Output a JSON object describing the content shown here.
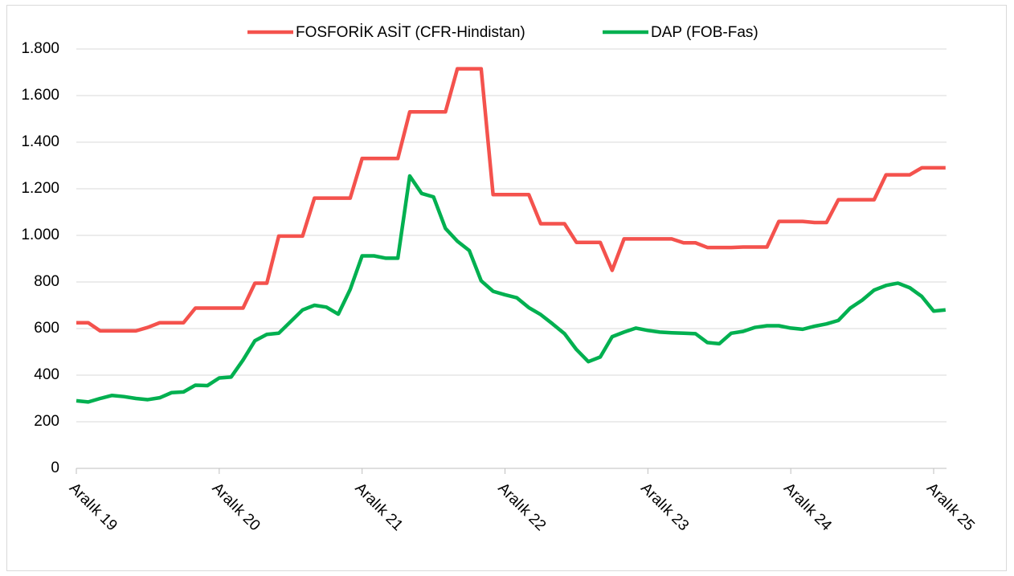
{
  "chart_data": {
    "type": "line",
    "categories": [
      "Aralık 19",
      null,
      null,
      null,
      null,
      null,
      null,
      null,
      null,
      null,
      null,
      null,
      "Aralık 20",
      null,
      null,
      null,
      null,
      null,
      null,
      null,
      null,
      null,
      null,
      null,
      "Aralık 21",
      null,
      null,
      null,
      null,
      null,
      null,
      null,
      null,
      null,
      null,
      null,
      "Aralık 22",
      null,
      null,
      null,
      null,
      null,
      null,
      null,
      null,
      null,
      null,
      null,
      "Aralık 23",
      null,
      null,
      null,
      null,
      null,
      null,
      null,
      null,
      null,
      null,
      null,
      "Aralık 24",
      null,
      null,
      null,
      null,
      null,
      null,
      null,
      null,
      null,
      null,
      null,
      "Aralık 25",
      null
    ],
    "series": [
      {
        "name": "FOSFORİK ASİT (CFR-Hindistan)",
        "color": "#f4524d",
        "values": [
          625,
          625,
          590,
          590,
          590,
          590,
          605,
          625,
          625,
          625,
          688,
          688,
          688,
          688,
          688,
          795,
          795,
          997,
          997,
          997,
          1160,
          1160,
          1160,
          1160,
          1330,
          1330,
          1330,
          1330,
          1530,
          1530,
          1530,
          1530,
          1715,
          1715,
          1715,
          1175,
          1175,
          1175,
          1175,
          1050,
          1050,
          1050,
          970,
          970,
          970,
          850,
          985,
          985,
          985,
          985,
          985,
          968,
          968,
          948,
          948,
          948,
          950,
          950,
          950,
          1060,
          1060,
          1060,
          1055,
          1055,
          1153,
          1153,
          1153,
          1153,
          1260,
          1260,
          1260,
          1290,
          1290,
          1290
        ]
      },
      {
        "name": "DAP (FOB-Fas)",
        "color": "#00b050",
        "values": [
          290,
          285,
          300,
          313,
          308,
          300,
          295,
          303,
          325,
          328,
          357,
          355,
          388,
          392,
          465,
          548,
          575,
          580,
          630,
          680,
          700,
          692,
          662,
          768,
          912,
          912,
          902,
          902,
          1255,
          1180,
          1165,
          1030,
          975,
          935,
          805,
          760,
          745,
          732,
          690,
          660,
          620,
          578,
          510,
          458,
          478,
          565,
          585,
          602,
          592,
          585,
          582,
          580,
          578,
          540,
          535,
          580,
          588,
          605,
          612,
          612,
          602,
          597,
          610,
          620,
          635,
          688,
          722,
          765,
          785,
          795,
          775,
          738,
          675,
          680
        ]
      }
    ],
    "ylim": [
      0,
      1800
    ],
    "yticks": [
      0,
      200,
      400,
      600,
      800,
      {
        "value": 1000,
        "label": "1.000"
      },
      {
        "value": 1200,
        "label": "1.200"
      },
      {
        "value": 1400,
        "label": "1.400"
      },
      {
        "value": 1600,
        "label": "1.600"
      },
      {
        "value": 1800,
        "label": "1.800"
      }
    ],
    "grid": true,
    "legend": "top"
  }
}
